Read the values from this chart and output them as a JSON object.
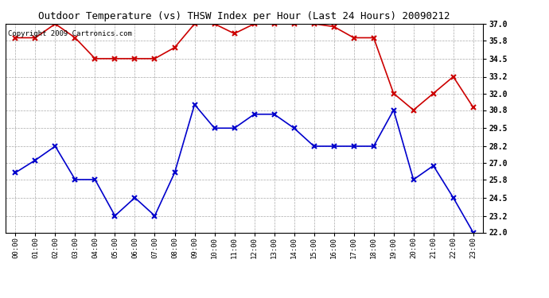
{
  "title": "Outdoor Temperature (vs) THSW Index per Hour (Last 24 Hours) 20090212",
  "copyright": "Copyright 2009 Cartronics.com",
  "hours": [
    "00:00",
    "01:00",
    "02:00",
    "03:00",
    "04:00",
    "05:00",
    "06:00",
    "07:00",
    "08:00",
    "09:00",
    "10:00",
    "11:00",
    "12:00",
    "13:00",
    "14:00",
    "15:00",
    "16:00",
    "17:00",
    "18:00",
    "19:00",
    "20:00",
    "21:00",
    "22:00",
    "23:00"
  ],
  "temp": [
    26.3,
    27.2,
    28.2,
    25.8,
    25.8,
    23.2,
    24.5,
    23.2,
    26.3,
    31.2,
    29.5,
    29.5,
    30.5,
    30.5,
    29.5,
    28.2,
    28.2,
    28.2,
    28.2,
    30.8,
    25.8,
    26.8,
    24.5,
    22.0
  ],
  "thsw": [
    36.0,
    36.0,
    37.0,
    36.0,
    34.5,
    34.5,
    34.5,
    34.5,
    35.3,
    37.0,
    37.0,
    36.3,
    37.0,
    37.0,
    37.0,
    37.0,
    36.8,
    36.0,
    36.0,
    32.0,
    30.8,
    32.0,
    33.2,
    31.0
  ],
  "temp_color": "#0000cc",
  "thsw_color": "#cc0000",
  "yticks": [
    22.0,
    23.2,
    24.5,
    25.8,
    27.0,
    28.2,
    29.5,
    30.8,
    32.0,
    33.2,
    34.5,
    35.8,
    37.0
  ],
  "ymin": 22.0,
  "ymax": 37.0,
  "bg_color": "#ffffff",
  "grid_color": "#aaaaaa",
  "marker": "x",
  "markersize": 4,
  "linewidth": 1.2,
  "title_fontsize": 9,
  "copyright_fontsize": 6.5
}
